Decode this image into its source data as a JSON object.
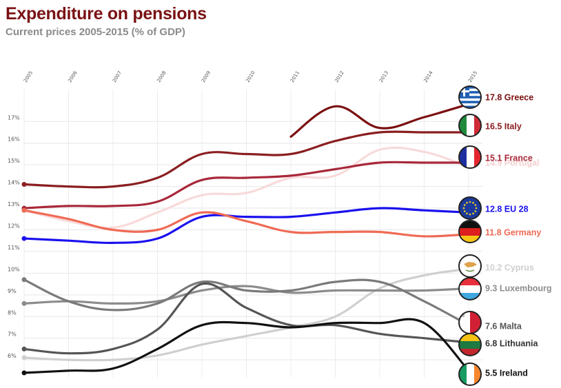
{
  "header": {
    "title": "Expenditure on pensions",
    "subtitle": "Current prices 2005-2015 (% of GDP)"
  },
  "chart_data": {
    "type": "line",
    "title": "Expenditure on pensions",
    "subtitle": "Current prices 2005-2015 (% of GDP)",
    "xlabel": "",
    "ylabel": "",
    "x": [
      "2005",
      "2006",
      "2007",
      "2008",
      "2009",
      "2010",
      "2011",
      "2012",
      "2013",
      "2014",
      "2015"
    ],
    "y_ticks": [
      "6%",
      "7%",
      "8%",
      "9%",
      "10%",
      "11%",
      "12%",
      "13%",
      "14%",
      "15%",
      "16%",
      "17%"
    ],
    "ylim": [
      5.4,
      17.9
    ],
    "grid": true,
    "legend": "end-of-line labels with flag icons",
    "series": [
      {
        "name": "Greece",
        "label": "17.8 Greece",
        "flag": "greece-flag",
        "values": [
          null,
          null,
          null,
          null,
          null,
          null,
          16.3,
          17.7,
          16.7,
          17.2,
          17.8
        ],
        "color": "#7b0f10",
        "label_color": "#7b0f10",
        "width": 3.2
      },
      {
        "name": "Italy",
        "label": "16.5 Italy",
        "flag": "italy-flag",
        "values": [
          14.1,
          14.0,
          14.0,
          14.4,
          15.5,
          15.5,
          15.5,
          16.1,
          16.5,
          16.5,
          16.5
        ],
        "color": "#8a1e20",
        "label_color": "#8a1e20",
        "width": 3.2
      },
      {
        "name": "Portugal",
        "label": "14.9 Portugal",
        "flag": "",
        "values": [
          12.9,
          12.4,
          12.1,
          12.8,
          13.6,
          13.7,
          14.4,
          14.5,
          15.7,
          15.6,
          14.9
        ],
        "color": "#f8dada",
        "label_color": "#f3cfcf",
        "width": 3.2
      },
      {
        "name": "France",
        "label": "15.1 France",
        "flag": "france-flag",
        "values": [
          13.0,
          13.1,
          13.1,
          13.3,
          14.3,
          14.4,
          14.5,
          14.8,
          15.1,
          15.1,
          15.1
        ],
        "color": "#a8283a",
        "label_color": "#a8283a",
        "width": 3.2
      },
      {
        "name": "EU 28",
        "label": "12.8 EU 28",
        "flag": "eu-flag",
        "values": [
          11.6,
          11.5,
          11.4,
          11.6,
          12.6,
          12.6,
          12.6,
          12.8,
          13.0,
          12.9,
          12.8
        ],
        "color": "#1a10ee",
        "label_color": "#1a10ee",
        "width": 3.2
      },
      {
        "name": "Germany",
        "label": "11.8 Germany",
        "flag": "germany-flag",
        "values": [
          12.9,
          12.5,
          12.0,
          12.0,
          12.8,
          12.4,
          11.9,
          11.9,
          11.9,
          11.7,
          11.8
        ],
        "color": "#ef6a55",
        "label_color": "#ef6a55",
        "width": 3.2
      },
      {
        "name": "Cyprus",
        "label": "10.2 Cyprus",
        "flag": "cyprus-flag",
        "values": [
          6.1,
          6.0,
          6.0,
          6.2,
          6.7,
          7.1,
          7.5,
          8.0,
          9.3,
          9.9,
          10.2
        ],
        "color": "#cfcfcf",
        "label_color": "#cfcfcf",
        "width": 3.2
      },
      {
        "name": "Luxembourg",
        "label": "9.3 Luxembourg",
        "flag": "luxembourg-flag",
        "values": [
          8.6,
          8.7,
          8.6,
          8.7,
          9.2,
          9.4,
          9.1,
          9.2,
          9.2,
          9.2,
          9.3
        ],
        "color": "#8c8c8c",
        "label_color": "#8c8c8c",
        "width": 3.2
      },
      {
        "name": "Malta",
        "label": "7.6 Malta",
        "flag": "malta-flag",
        "values": [
          9.7,
          8.7,
          8.3,
          8.6,
          9.6,
          9.2,
          9.2,
          9.6,
          9.6,
          8.7,
          7.6
        ],
        "color": "#7a7a7a",
        "label_color": "#555555",
        "width": 3.2
      },
      {
        "name": "Lithuania",
        "label": "6.8 Lithuania",
        "flag": "lithuania-flag",
        "values": [
          6.5,
          6.3,
          6.5,
          7.4,
          9.5,
          8.4,
          7.6,
          7.6,
          7.2,
          7.0,
          6.8
        ],
        "color": "#555555",
        "label_color": "#333333",
        "width": 3.2
      },
      {
        "name": "Ireland",
        "label": "5.5 Ireland",
        "flag": "ireland-flag",
        "values": [
          5.4,
          5.5,
          5.6,
          6.5,
          7.6,
          7.7,
          7.5,
          7.7,
          7.7,
          7.7,
          5.5
        ],
        "color": "#111111",
        "label_color": "#111111",
        "width": 3.2
      }
    ]
  }
}
